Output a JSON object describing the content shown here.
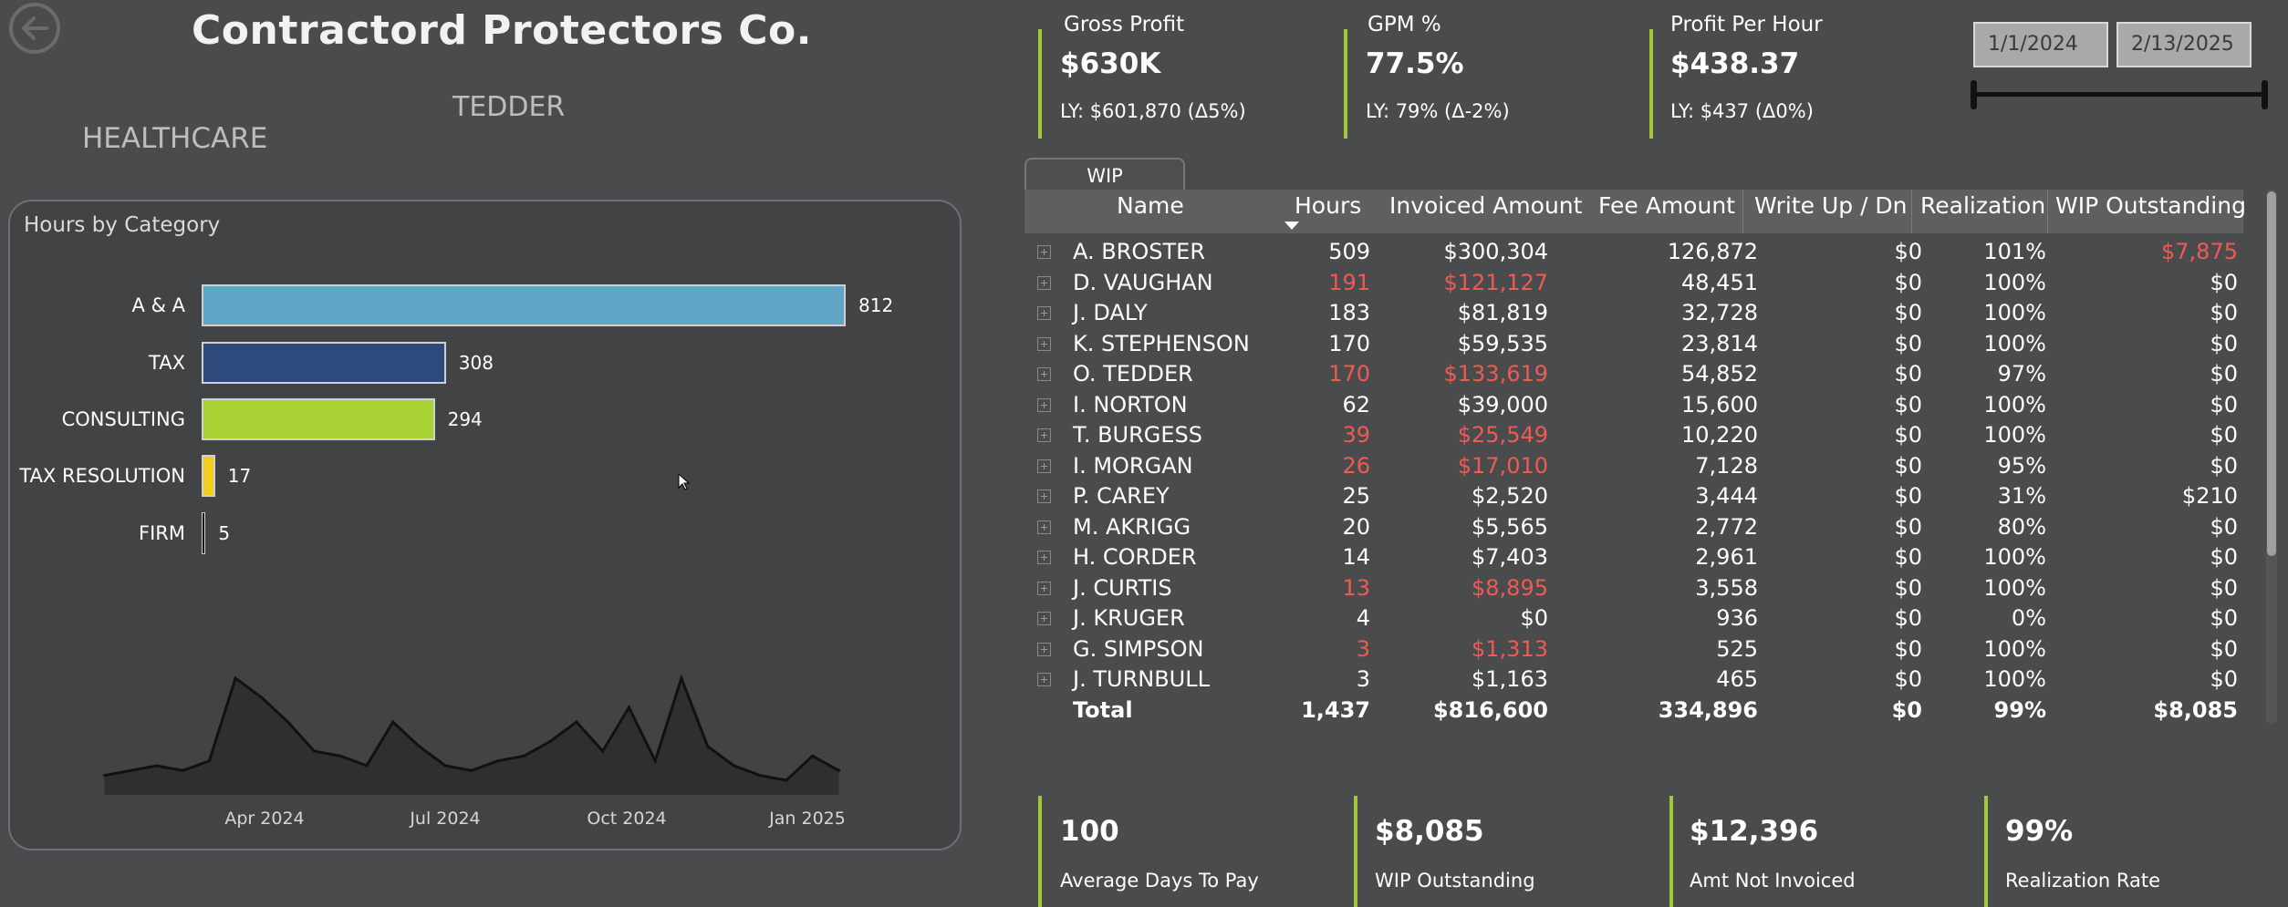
{
  "header": {
    "title": "Contractord Protectors Co.",
    "filter1": "TEDDER",
    "filter2": "HEALTHCARE"
  },
  "kpis_top": [
    {
      "title": "Gross Profit",
      "value": "$630K",
      "sub": "LY: $601,870 (Δ5%)"
    },
    {
      "title": "GPM %",
      "value": "77.5%",
      "sub": "LY: 79% (Δ-2%)"
    },
    {
      "title": "Profit Per Hour",
      "value": "$438.37",
      "sub": "LY: $437 (Δ0%)"
    }
  ],
  "date_slicer": {
    "start": "1/1/2024",
    "end": "2/13/2025"
  },
  "chart_data": [
    {
      "type": "bar",
      "orientation": "horizontal",
      "title": "Hours by Category",
      "categories": [
        "A & A",
        "TAX",
        "CONSULTING",
        "TAX RESOLUTION",
        "FIRM"
      ],
      "values": [
        812,
        308,
        294,
        17,
        5
      ],
      "colors": [
        "#5ea5c6",
        "#2e4a7d",
        "#a9d235",
        "#f2cf1d",
        "#1a1a1a"
      ]
    },
    {
      "type": "area",
      "title": "",
      "x_ticks": [
        "Apr 2024",
        "Jul 2024",
        "Oct 2024",
        "Jan 2025"
      ],
      "x": [
        "2024-01-08",
        "2024-01-22",
        "2024-02-05",
        "2024-02-19",
        "2024-03-04",
        "2024-03-18",
        "2024-04-01",
        "2024-04-15",
        "2024-04-29",
        "2024-05-13",
        "2024-05-27",
        "2024-06-10",
        "2024-06-24",
        "2024-07-08",
        "2024-07-22",
        "2024-08-05",
        "2024-08-19",
        "2024-09-02",
        "2024-09-16",
        "2024-09-30",
        "2024-10-14",
        "2024-10-28",
        "2024-11-11",
        "2024-11-25",
        "2024-12-09",
        "2024-12-23",
        "2025-01-06",
        "2025-01-20",
        "2025-02-03"
      ],
      "values": [
        8,
        10,
        12,
        10,
        14,
        48,
        40,
        30,
        18,
        16,
        12,
        30,
        20,
        12,
        10,
        14,
        16,
        22,
        30,
        18,
        36,
        14,
        48,
        20,
        12,
        8,
        6,
        16,
        10
      ],
      "color": "#111111"
    }
  ],
  "table": {
    "tab_label": "WIP",
    "columns": [
      "Name",
      "Hours",
      "Invoiced Amount",
      "Fee Amount",
      "Write Up / Dn",
      "Realization",
      "WIP Outstanding"
    ],
    "rows": [
      {
        "name": "A. BROSTER",
        "hours": "509",
        "invoiced": "$300,304",
        "fee": "126,872",
        "write": "$0",
        "real": "101%",
        "wip": "$7,875",
        "red_hours": false,
        "red_inv": false,
        "red_wip": true
      },
      {
        "name": "D. VAUGHAN",
        "hours": "191",
        "invoiced": "$121,127",
        "fee": "48,451",
        "write": "$0",
        "real": "100%",
        "wip": "$0",
        "red_hours": true,
        "red_inv": true,
        "red_wip": false
      },
      {
        "name": "J. DALY",
        "hours": "183",
        "invoiced": "$81,819",
        "fee": "32,728",
        "write": "$0",
        "real": "100%",
        "wip": "$0",
        "red_hours": false,
        "red_inv": false,
        "red_wip": false
      },
      {
        "name": "K. STEPHENSON",
        "hours": "170",
        "invoiced": "$59,535",
        "fee": "23,814",
        "write": "$0",
        "real": "100%",
        "wip": "$0",
        "red_hours": false,
        "red_inv": false,
        "red_wip": false
      },
      {
        "name": "O. TEDDER",
        "hours": "170",
        "invoiced": "$133,619",
        "fee": "54,852",
        "write": "$0",
        "real": "97%",
        "wip": "$0",
        "red_hours": true,
        "red_inv": true,
        "red_wip": false
      },
      {
        "name": "I. NORTON",
        "hours": "62",
        "invoiced": "$39,000",
        "fee": "15,600",
        "write": "$0",
        "real": "100%",
        "wip": "$0",
        "red_hours": false,
        "red_inv": false,
        "red_wip": false
      },
      {
        "name": "T. BURGESS",
        "hours": "39",
        "invoiced": "$25,549",
        "fee": "10,220",
        "write": "$0",
        "real": "100%",
        "wip": "$0",
        "red_hours": true,
        "red_inv": true,
        "red_wip": false
      },
      {
        "name": "I. MORGAN",
        "hours": "26",
        "invoiced": "$17,010",
        "fee": "7,128",
        "write": "$0",
        "real": "95%",
        "wip": "$0",
        "red_hours": true,
        "red_inv": true,
        "red_wip": false
      },
      {
        "name": "P. CAREY",
        "hours": "25",
        "invoiced": "$2,520",
        "fee": "3,444",
        "write": "$0",
        "real": "31%",
        "wip": "$210",
        "red_hours": false,
        "red_inv": false,
        "red_wip": false
      },
      {
        "name": "M. AKRIGG",
        "hours": "20",
        "invoiced": "$5,565",
        "fee": "2,772",
        "write": "$0",
        "real": "80%",
        "wip": "$0",
        "red_hours": false,
        "red_inv": false,
        "red_wip": false
      },
      {
        "name": "H. CORDER",
        "hours": "14",
        "invoiced": "$7,403",
        "fee": "2,961",
        "write": "$0",
        "real": "100%",
        "wip": "$0",
        "red_hours": false,
        "red_inv": false,
        "red_wip": false
      },
      {
        "name": "J. CURTIS",
        "hours": "13",
        "invoiced": "$8,895",
        "fee": "3,558",
        "write": "$0",
        "real": "100%",
        "wip": "$0",
        "red_hours": true,
        "red_inv": true,
        "red_wip": false
      },
      {
        "name": "J. KRUGER",
        "hours": "4",
        "invoiced": "$0",
        "fee": "936",
        "write": "$0",
        "real": "0%",
        "wip": "$0",
        "red_hours": false,
        "red_inv": false,
        "red_wip": false
      },
      {
        "name": "G. SIMPSON",
        "hours": "3",
        "invoiced": "$1,313",
        "fee": "525",
        "write": "$0",
        "real": "100%",
        "wip": "$0",
        "red_hours": true,
        "red_inv": true,
        "red_wip": false
      },
      {
        "name": "J. TURNBULL",
        "hours": "3",
        "invoiced": "$1,163",
        "fee": "465",
        "write": "$0",
        "real": "100%",
        "wip": "$0",
        "red_hours": false,
        "red_inv": false,
        "red_wip": false
      }
    ],
    "total": {
      "name": "Total",
      "hours": "1,437",
      "invoiced": "$816,600",
      "fee": "334,896",
      "write": "$0",
      "real": "99%",
      "wip": "$8,085"
    }
  },
  "kpis_bottom": [
    {
      "value": "100",
      "label": "Average Days To Pay"
    },
    {
      "value": "$8,085",
      "label": "WIP Outstanding"
    },
    {
      "value": "$12,396",
      "label": "Amt Not Invoiced"
    },
    {
      "value": "99%",
      "label": "Realization Rate"
    }
  ],
  "colors": {
    "accent": "#a2c83a",
    "negative": "#ef5a52",
    "background": "#4a4b4d"
  }
}
